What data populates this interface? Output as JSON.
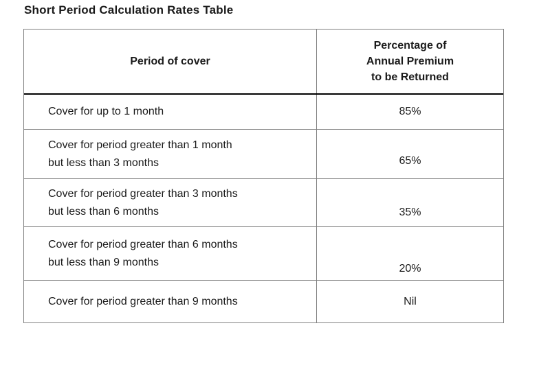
{
  "title": "Short Period Calculation Rates Table",
  "table": {
    "columns": [
      {
        "label": "Period of cover"
      },
      {
        "label": "Percentage of\nAnnual Premium\nto be Returned"
      }
    ],
    "rows": [
      {
        "period": "Cover for up to 1 month",
        "value": "85%"
      },
      {
        "period": "Cover for period greater than 1 month\nbut less than 3 months",
        "value": "65%"
      },
      {
        "period": "Cover for period greater than 3 months\nbut less than 6 months",
        "value": "35%"
      },
      {
        "period": "Cover for period greater than 6 months\nbut less than 9 months",
        "value": "20%"
      },
      {
        "period": "Cover for period greater than 9 months",
        "value": "Nil"
      }
    ],
    "colors": {
      "border": "#7f7f7f",
      "header_separator": "#000000",
      "text": "#1a1a1a",
      "background": "#ffffff"
    }
  }
}
